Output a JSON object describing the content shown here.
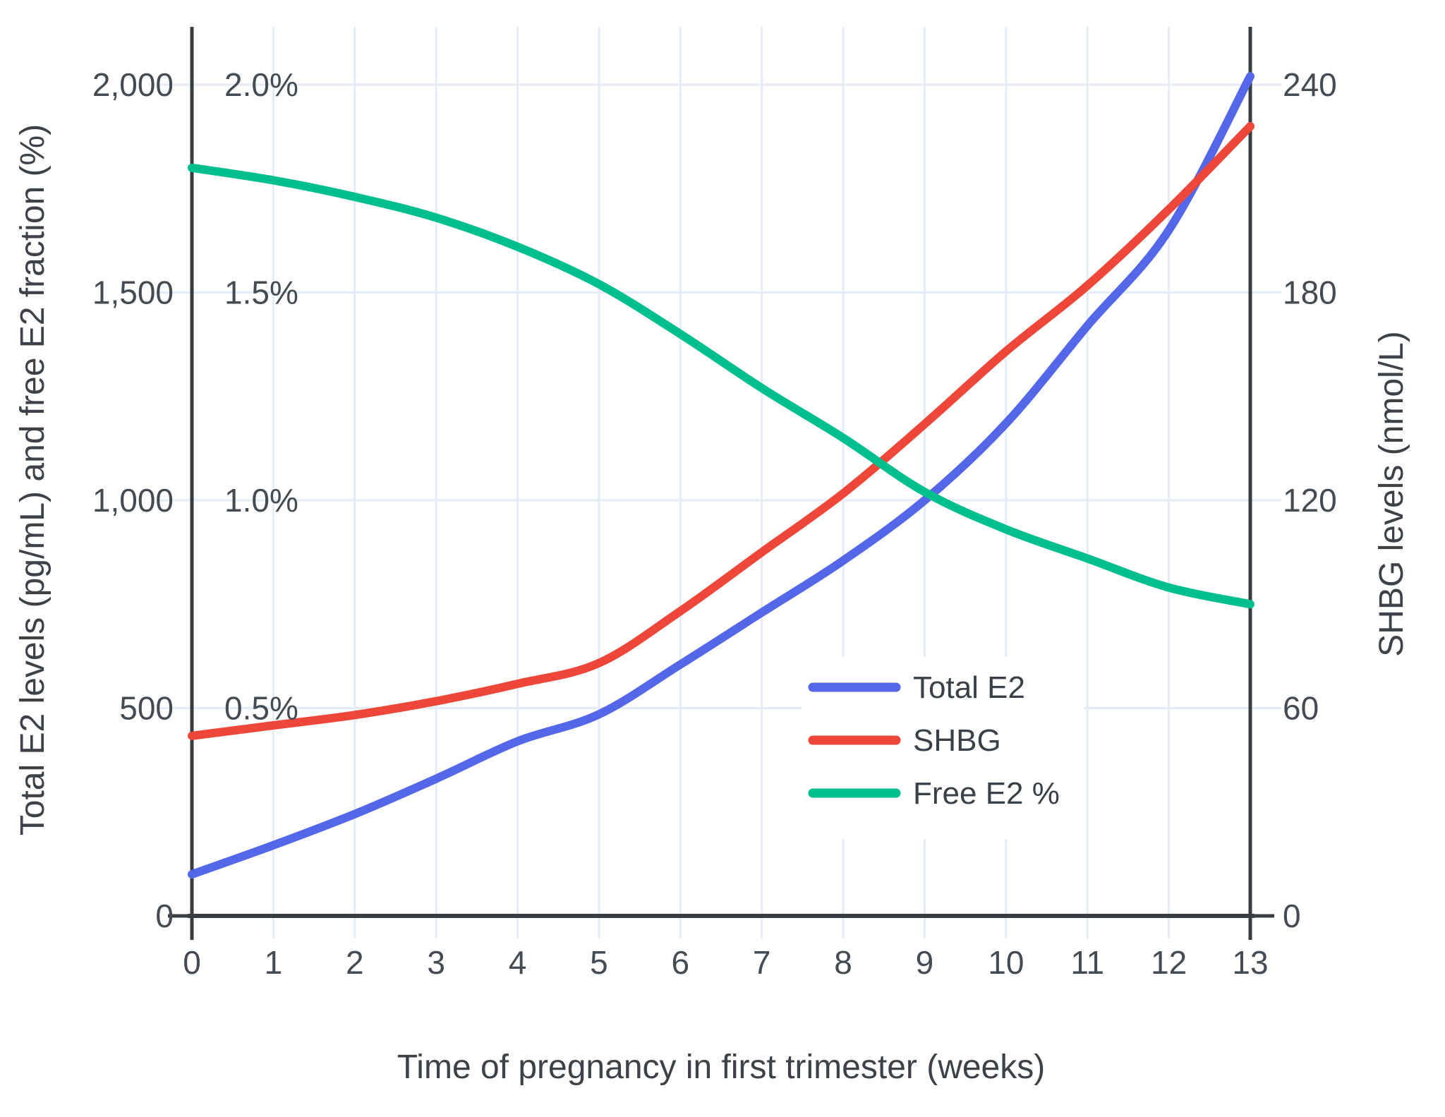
{
  "chart_data": {
    "type": "line",
    "title": "",
    "xlabel": "Time of pregnancy in first trimester (weeks)",
    "ylabel_left": "Total E2 levels (pg/mL) and free E2 fraction (%)",
    "ylabel_right": "SHBG levels (nmol/L)",
    "x": [
      0,
      1,
      2,
      3,
      4,
      5,
      6,
      7,
      8,
      9,
      10,
      11,
      12,
      13
    ],
    "x_tick_labels": [
      "0",
      "1",
      "2",
      "3",
      "4",
      "5",
      "6",
      "7",
      "8",
      "9",
      "10",
      "11",
      "12",
      "13"
    ],
    "left_axis": {
      "range": [
        0,
        2140
      ],
      "tick_values": [
        0,
        500,
        1000,
        1500,
        2000
      ],
      "tick_labels": [
        "0",
        "500",
        "1,000",
        "1,500",
        "2,000"
      ]
    },
    "percent_axis": {
      "range": [
        0,
        2.14
      ],
      "tick_values": [
        0.5,
        1.0,
        1.5,
        2.0
      ],
      "tick_labels": [
        "0.5%",
        "1.0%",
        "1.5%",
        "2.0%"
      ]
    },
    "right_axis": {
      "range": [
        0,
        257
      ],
      "tick_values": [
        0,
        60,
        120,
        180,
        240
      ],
      "tick_labels": [
        "0",
        "60",
        "120",
        "180",
        "240"
      ]
    },
    "grid": "on",
    "legend_position": "inside-middle-right",
    "series": [
      {
        "name": "Total E2",
        "axis": "left",
        "unit": "pg/mL",
        "color": "#5467e8",
        "values": [
          100,
          170,
          245,
          330,
          420,
          485,
          605,
          730,
          855,
          1000,
          1185,
          1420,
          1650,
          2020
        ]
      },
      {
        "name": "SHBG",
        "axis": "right",
        "unit": "nmol/L",
        "color": "#ee4638",
        "values": [
          52,
          55,
          58,
          62,
          67,
          73,
          88,
          105,
          122,
          142,
          163,
          182,
          204,
          228
        ]
      },
      {
        "name": "Free E2 %",
        "axis": "percent",
        "unit": "%",
        "color": "#00bf8e",
        "values": [
          1.8,
          1.77,
          1.73,
          1.68,
          1.61,
          1.52,
          1.4,
          1.27,
          1.15,
          1.02,
          0.93,
          0.86,
          0.79,
          0.75
        ]
      }
    ],
    "legend_entries": [
      "Total E2",
      "SHBG",
      "Free E2 %"
    ]
  },
  "colors": {
    "background": "#ffffff",
    "grid": "#e6ecf7",
    "axis_line": "#383d42",
    "tick_text": "#454b52",
    "title_text": "#3c4248",
    "legend_background": "#ffffff"
  }
}
